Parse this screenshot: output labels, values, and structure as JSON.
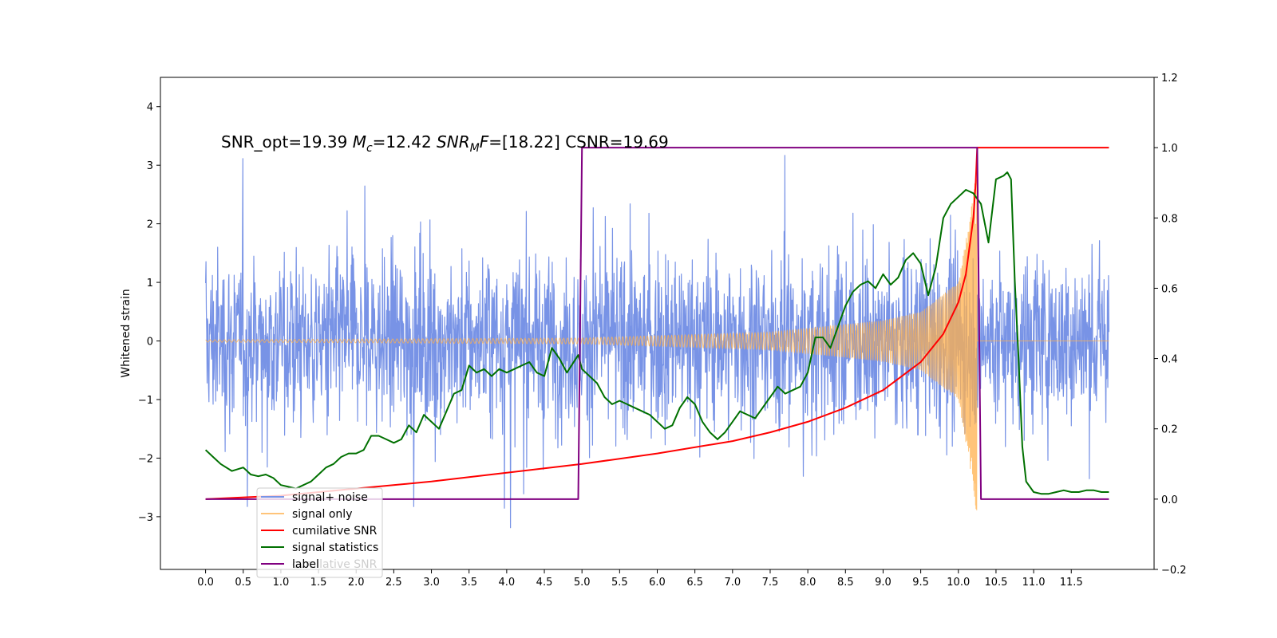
{
  "chart_data": {
    "type": "line",
    "annotation": {
      "prefix": "SNR_opt=19.39 ",
      "mc_sym": "M",
      "mc_sub": "c",
      "mc_val": "=12.42  ",
      "snr_sym": "SNR",
      "snr_sub": "M",
      "snr_f": "F",
      "snr_val": "=[18.22] CSNR=19.69"
    },
    "ylabel": "Whitened strain",
    "xlim": [
      -0.6,
      12.6
    ],
    "ylim_left": [
      -3.9,
      4.5
    ],
    "ylim_right": [
      -0.2,
      1.2
    ],
    "x_ticks": [
      "0.0",
      "0.5",
      "1.0",
      "1.5",
      "2.0",
      "2.5",
      "3.0",
      "3.5",
      "4.0",
      "4.5",
      "5.0",
      "5.5",
      "6.0",
      "6.5",
      "7.0",
      "7.5",
      "8.0",
      "8.5",
      "9.0",
      "9.5",
      "10.0",
      "10.5",
      "11.0",
      "11.5"
    ],
    "y_ticks_left": [
      "4",
      "3",
      "2",
      "1",
      "0",
      "−1",
      "−2",
      "−3"
    ],
    "y_ticks_left_values": [
      4,
      3,
      2,
      1,
      0,
      -1,
      -2,
      -3
    ],
    "y_ticks_right": [
      "1.2",
      "1.0",
      "0.8",
      "0.6",
      "0.4",
      "0.2",
      "0.0",
      "−0.2"
    ],
    "y_ticks_right_values": [
      1.2,
      1.0,
      0.8,
      0.6,
      0.4,
      0.2,
      0.0,
      -0.2
    ],
    "colors": {
      "noise": "#7893e6",
      "signal": "#ffb04c",
      "csnr": "#ff0000",
      "stat": "#007000",
      "label": "#800080"
    },
    "series": [
      {
        "name": "signal+ noise",
        "axis": "left",
        "kind": "band",
        "x": [
          0.0,
          12.0
        ],
        "spread": 1.6
      },
      {
        "name": "signal only",
        "axis": "left",
        "kind": "chirp",
        "t_merge": 10.25,
        "amp_at": [
          [
            0.0,
            0.02
          ],
          [
            5.0,
            0.05
          ],
          [
            7.5,
            0.15
          ],
          [
            9.0,
            0.35
          ],
          [
            9.5,
            0.5
          ],
          [
            10.0,
            1.0
          ],
          [
            10.2,
            2.5
          ],
          [
            10.25,
            3.1
          ]
        ]
      },
      {
        "name": "cumilative SNR",
        "axis": "right",
        "points": [
          [
            0.0,
            0.0
          ],
          [
            1.0,
            0.01
          ],
          [
            2.0,
            0.03
          ],
          [
            3.0,
            0.05
          ],
          [
            4.0,
            0.075
          ],
          [
            5.0,
            0.1
          ],
          [
            6.0,
            0.13
          ],
          [
            7.0,
            0.165
          ],
          [
            7.5,
            0.19
          ],
          [
            8.0,
            0.22
          ],
          [
            8.5,
            0.26
          ],
          [
            9.0,
            0.31
          ],
          [
            9.5,
            0.39
          ],
          [
            9.8,
            0.47
          ],
          [
            10.0,
            0.56
          ],
          [
            10.1,
            0.64
          ],
          [
            10.2,
            0.8
          ],
          [
            10.23,
            0.9
          ],
          [
            10.25,
            1.0
          ],
          [
            12.0,
            1.0
          ]
        ]
      },
      {
        "name": "signal statistics",
        "axis": "right",
        "points": [
          [
            0.0,
            0.14
          ],
          [
            0.1,
            0.12
          ],
          [
            0.2,
            0.1
          ],
          [
            0.35,
            0.08
          ],
          [
            0.5,
            0.09
          ],
          [
            0.6,
            0.07
          ],
          [
            0.7,
            0.065
          ],
          [
            0.8,
            0.07
          ],
          [
            0.9,
            0.06
          ],
          [
            1.0,
            0.04
          ],
          [
            1.1,
            0.035
          ],
          [
            1.2,
            0.03
          ],
          [
            1.3,
            0.04
          ],
          [
            1.4,
            0.05
          ],
          [
            1.5,
            0.07
          ],
          [
            1.6,
            0.09
          ],
          [
            1.7,
            0.1
          ],
          [
            1.8,
            0.12
          ],
          [
            1.9,
            0.13
          ],
          [
            2.0,
            0.13
          ],
          [
            2.1,
            0.14
          ],
          [
            2.2,
            0.18
          ],
          [
            2.3,
            0.18
          ],
          [
            2.4,
            0.17
          ],
          [
            2.5,
            0.16
          ],
          [
            2.6,
            0.17
          ],
          [
            2.7,
            0.21
          ],
          [
            2.8,
            0.19
          ],
          [
            2.9,
            0.24
          ],
          [
            3.0,
            0.22
          ],
          [
            3.1,
            0.2
          ],
          [
            3.2,
            0.25
          ],
          [
            3.3,
            0.3
          ],
          [
            3.4,
            0.31
          ],
          [
            3.5,
            0.38
          ],
          [
            3.6,
            0.36
          ],
          [
            3.7,
            0.37
          ],
          [
            3.8,
            0.35
          ],
          [
            3.9,
            0.37
          ],
          [
            4.0,
            0.36
          ],
          [
            4.1,
            0.37
          ],
          [
            4.2,
            0.38
          ],
          [
            4.3,
            0.39
          ],
          [
            4.4,
            0.36
          ],
          [
            4.5,
            0.35
          ],
          [
            4.6,
            0.43
          ],
          [
            4.7,
            0.4
          ],
          [
            4.8,
            0.36
          ],
          [
            4.95,
            0.41
          ],
          [
            5.0,
            0.37
          ],
          [
            5.1,
            0.35
          ],
          [
            5.2,
            0.33
          ],
          [
            5.3,
            0.29
          ],
          [
            5.4,
            0.27
          ],
          [
            5.5,
            0.28
          ],
          [
            5.6,
            0.27
          ],
          [
            5.7,
            0.26
          ],
          [
            5.8,
            0.25
          ],
          [
            5.9,
            0.24
          ],
          [
            6.0,
            0.22
          ],
          [
            6.1,
            0.2
          ],
          [
            6.2,
            0.21
          ],
          [
            6.3,
            0.26
          ],
          [
            6.4,
            0.29
          ],
          [
            6.5,
            0.27
          ],
          [
            6.6,
            0.22
          ],
          [
            6.7,
            0.19
          ],
          [
            6.8,
            0.17
          ],
          [
            6.9,
            0.19
          ],
          [
            7.0,
            0.22
          ],
          [
            7.1,
            0.25
          ],
          [
            7.2,
            0.24
          ],
          [
            7.3,
            0.23
          ],
          [
            7.4,
            0.26
          ],
          [
            7.5,
            0.29
          ],
          [
            7.6,
            0.32
          ],
          [
            7.7,
            0.3
          ],
          [
            7.8,
            0.31
          ],
          [
            7.9,
            0.32
          ],
          [
            8.0,
            0.36
          ],
          [
            8.1,
            0.46
          ],
          [
            8.2,
            0.46
          ],
          [
            8.3,
            0.43
          ],
          [
            8.4,
            0.49
          ],
          [
            8.5,
            0.55
          ],
          [
            8.6,
            0.59
          ],
          [
            8.7,
            0.61
          ],
          [
            8.8,
            0.62
          ],
          [
            8.9,
            0.6
          ],
          [
            9.0,
            0.64
          ],
          [
            9.1,
            0.61
          ],
          [
            9.2,
            0.63
          ],
          [
            9.3,
            0.68
          ],
          [
            9.4,
            0.7
          ],
          [
            9.5,
            0.67
          ],
          [
            9.6,
            0.58
          ],
          [
            9.7,
            0.66
          ],
          [
            9.8,
            0.8
          ],
          [
            9.9,
            0.84
          ],
          [
            10.0,
            0.86
          ],
          [
            10.1,
            0.88
          ],
          [
            10.2,
            0.87
          ],
          [
            10.3,
            0.84
          ],
          [
            10.4,
            0.73
          ],
          [
            10.5,
            0.91
          ],
          [
            10.6,
            0.92
          ],
          [
            10.65,
            0.93
          ],
          [
            10.7,
            0.91
          ],
          [
            10.75,
            0.62
          ],
          [
            10.8,
            0.4
          ],
          [
            10.85,
            0.15
          ],
          [
            10.9,
            0.05
          ],
          [
            11.0,
            0.02
          ],
          [
            11.1,
            0.015
          ],
          [
            11.2,
            0.015
          ],
          [
            11.3,
            0.02
          ],
          [
            11.4,
            0.025
          ],
          [
            11.5,
            0.02
          ],
          [
            11.6,
            0.02
          ],
          [
            11.7,
            0.025
          ],
          [
            11.8,
            0.025
          ],
          [
            11.9,
            0.02
          ],
          [
            12.0,
            0.02
          ]
        ]
      },
      {
        "name": "label",
        "axis": "right",
        "points": [
          [
            0.0,
            0.0
          ],
          [
            4.95,
            0.0
          ],
          [
            5.0,
            1.0
          ],
          [
            10.25,
            1.0
          ],
          [
            10.3,
            0.0
          ],
          [
            12.0,
            0.0
          ]
        ]
      }
    ],
    "legend": {
      "placement": "lower-left",
      "entries": [
        "signal+ noise",
        "signal only",
        "cumilative SNR",
        "signal statistics",
        "label"
      ],
      "ghost_text": "cumilative SNR"
    },
    "grid": false
  }
}
